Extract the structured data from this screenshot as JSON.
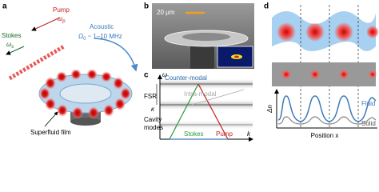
{
  "panel_a": {
    "letter": "a",
    "pump": "Pump",
    "pump_symbol": "ω",
    "pump_sub": "p",
    "stokes": "Stokes",
    "stokes_symbol": "ω",
    "stokes_sub": "s",
    "acoustic": "Acoustic",
    "acoustic_symbol": "Ω",
    "acoustic_sub": "0",
    "acoustic_range": "~ 1–10 MHz",
    "film": "Superfluid film"
  },
  "panel_b": {
    "letter": "b",
    "scale": "20 μm"
  },
  "panel_c": {
    "letter": "c",
    "omega": "ω",
    "k": "k",
    "counter": "Counter-modal",
    "intra": "Intra-modal",
    "fsr": "FSR",
    "kappa": "κ",
    "cavity_1": "Cavity",
    "cavity_2": "modes",
    "stokes": "Stokes",
    "pump": "Pump"
  },
  "panel_d": {
    "letter": "d",
    "dn": "Δn",
    "fluid": "Fluid",
    "solid": "Solid",
    "position": "Position x"
  }
}
